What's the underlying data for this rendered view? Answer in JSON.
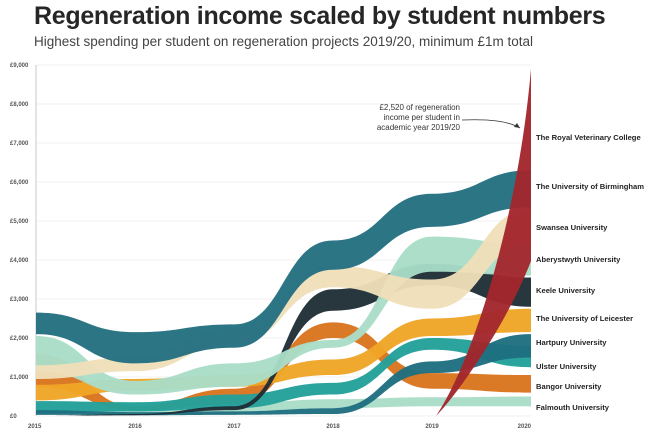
{
  "title": "Regeneration income scaled by student numbers",
  "subtitle": "Highest spending per student on regeneration projects 2019/20, minimum £1m total",
  "annotation": [
    "£2,520 of regeneration",
    "income per student in",
    "academic year 2019/20"
  ],
  "chart_data": {
    "type": "area",
    "x": [
      2015,
      2016,
      2017,
      2018,
      2019,
      2020
    ],
    "ylim": [
      0,
      9000
    ],
    "yticks": [
      "£0",
      "£1,000",
      "£2,000",
      "£3,000",
      "£4,000",
      "£5,000",
      "£6,000",
      "£7,000",
      "£8,000",
      "£9,000"
    ],
    "xticks": [
      "2015",
      "2016",
      "2017",
      "2018",
      "2019",
      "2020"
    ],
    "series": [
      {
        "name": "Falmouth University",
        "color": "#a9ddc8",
        "bottom": [
          80,
          60,
          100,
          200,
          250,
          250
        ],
        "top": [
          380,
          360,
          320,
          430,
          480,
          500
        ]
      },
      {
        "name": "Bangor University",
        "color": "#d8741d",
        "bottom": [
          750,
          150,
          300,
          2000,
          700,
          600
        ],
        "top": [
          1600,
          250,
          700,
          2400,
          1100,
          1050
        ]
      },
      {
        "name": "Ulster University",
        "color": "#23a09a",
        "bottom": [
          80,
          120,
          200,
          550,
          1700,
          1250
        ],
        "top": [
          380,
          350,
          550,
          850,
          2000,
          1800
        ]
      },
      {
        "name": "Hartpury University",
        "color": "#1e6e80",
        "bottom": [
          30,
          20,
          30,
          50,
          1100,
          1500
        ],
        "top": [
          150,
          100,
          120,
          200,
          1400,
          2100
        ]
      },
      {
        "name": "The University of Leicester",
        "color": "#efa526",
        "bottom": [
          400,
          650,
          750,
          1050,
          2050,
          2150
        ],
        "top": [
          800,
          950,
          1050,
          1450,
          2500,
          2750
        ]
      },
      {
        "name": "Keele University",
        "color": "#1f2e36",
        "bottom": [
          0,
          20,
          150,
          2700,
          3350,
          2800
        ],
        "top": [
          0,
          50,
          250,
          3250,
          3900,
          3550
        ]
      },
      {
        "name": "Aberystwyth University",
        "color": "#a9ddc8",
        "bottom": [
          1150,
          550,
          750,
          1750,
          3700,
          3600
        ],
        "top": [
          2050,
          900,
          1350,
          1950,
          4600,
          4400
        ]
      },
      {
        "name": "Swansea University",
        "color": "#efdfb9",
        "bottom": [
          950,
          1150,
          1850,
          3300,
          2750,
          4400
        ],
        "top": [
          1300,
          1500,
          2250,
          3850,
          3500,
          5300
        ]
      },
      {
        "name": "The University of Birmingham",
        "color": "#236f80",
        "bottom": [
          2100,
          1350,
          1750,
          3750,
          4850,
          5350
        ],
        "top": [
          2650,
          2150,
          2350,
          4500,
          5700,
          6300
        ]
      },
      {
        "name": "The Royal Veterinary College",
        "color": "#a2262d",
        "bottom": [
          0,
          0,
          0,
          0,
          0,
          0
        ],
        "top": [
          0,
          0,
          0,
          0,
          0,
          8900
        ]
      }
    ]
  }
}
